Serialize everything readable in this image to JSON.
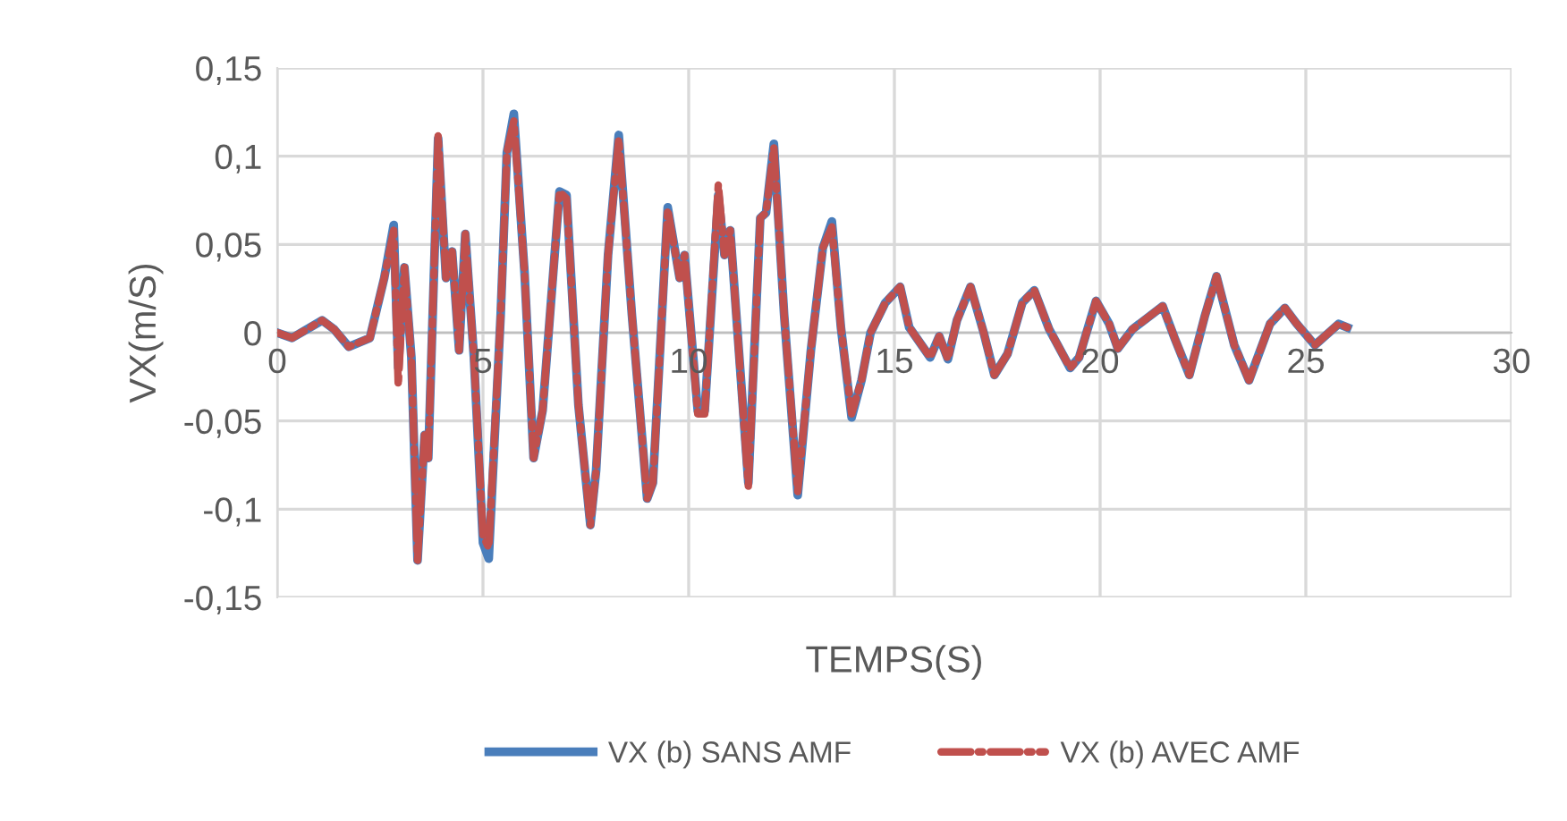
{
  "chart_data": {
    "type": "line",
    "xlabel": "TEMPS(S)",
    "ylabel": "VX(m/S)",
    "xlim": [
      0,
      30
    ],
    "xticks": [
      0,
      5,
      10,
      15,
      20,
      25,
      30
    ],
    "ylim": [
      -0.15,
      0.15
    ],
    "yticks": [
      {
        "value": -0.15,
        "label": "-0,15"
      },
      {
        "value": -0.1,
        "label": "-0,1"
      },
      {
        "value": -0.05,
        "label": "-0,05"
      },
      {
        "value": 0,
        "label": "0"
      },
      {
        "value": 0.05,
        "label": "0,05"
      },
      {
        "value": 0.1,
        "label": "0,1"
      },
      {
        "value": 0.15,
        "label": "0,15"
      }
    ],
    "grid": true,
    "legend": "bottom",
    "marker": "none",
    "x": [
      0,
      0.36,
      1.09,
      1.38,
      1.74,
      2.25,
      2.6,
      2.83,
      2.94,
      3.09,
      3.26,
      3.41,
      3.58,
      3.67,
      3.91,
      4.1,
      4.25,
      4.42,
      4.57,
      4.78,
      5.0,
      5.14,
      5.43,
      5.58,
      5.75,
      6.01,
      6.23,
      6.45,
      6.86,
      7.03,
      7.32,
      7.61,
      7.75,
      8.04,
      8.3,
      8.62,
      8.99,
      9.13,
      9.49,
      9.78,
      9.9,
      10.22,
      10.39,
      10.72,
      10.87,
      11.01,
      11.45,
      11.74,
      11.88,
      12.07,
      12.32,
      12.65,
      12.97,
      13.26,
      13.48,
      13.7,
      13.96,
      14.2,
      14.42,
      14.78,
      15.14,
      15.36,
      15.87,
      16.09,
      16.3,
      16.52,
      16.85,
      17.17,
      17.43,
      17.75,
      18.11,
      18.4,
      18.76,
      19.27,
      19.49,
      19.9,
      20.22,
      20.43,
      20.79,
      21.52,
      21.81,
      22.17,
      22.54,
      22.83,
      23.26,
      23.62,
      24.13,
      24.49,
      24.78,
      25.22,
      25.8,
      26.01
    ],
    "series": [
      {
        "name": "VX (b) SANS AMF",
        "color": "#4a7ebb",
        "line_style": "solid",
        "values": [
          0,
          -0.003,
          0.007,
          0.002,
          -0.008,
          -0.003,
          0.031,
          0.061,
          -0.02,
          0.037,
          -0.014,
          -0.129,
          -0.058,
          -0.071,
          0.11,
          0.031,
          0.046,
          -0.01,
          0.056,
          -0.014,
          -0.119,
          -0.128,
          0.01,
          0.102,
          0.124,
          0.034,
          -0.071,
          -0.044,
          0.08,
          0.078,
          -0.041,
          -0.109,
          -0.078,
          0.044,
          0.112,
          0.01,
          -0.094,
          -0.085,
          0.071,
          0.031,
          0.044,
          -0.044,
          -0.044,
          0.078,
          0.044,
          0.058,
          -0.085,
          0.065,
          0.068,
          0.107,
          0.01,
          -0.092,
          -0.01,
          0.048,
          0.063,
          0.003,
          -0.048,
          -0.027,
          0,
          0.017,
          0.026,
          0.003,
          -0.014,
          -0.002,
          -0.015,
          0.007,
          0.026,
          0,
          -0.024,
          -0.012,
          0.017,
          0.024,
          0.002,
          -0.02,
          -0.014,
          0.018,
          0.005,
          -0.009,
          0.002,
          0.015,
          -0.003,
          -0.024,
          0.009,
          0.032,
          -0.007,
          -0.027,
          0.005,
          0.014,
          0.005,
          -0.007,
          0.005,
          0.003
        ]
      },
      {
        "name": "VX (b) AVEC AMF",
        "color": "#c0504d",
        "line_style": "dashdot",
        "values": [
          0,
          -0.003,
          0.007,
          0.002,
          -0.008,
          -0.003,
          0.031,
          0.058,
          -0.03,
          0.037,
          -0.014,
          -0.129,
          -0.058,
          -0.071,
          0.112,
          0.031,
          0.046,
          -0.01,
          0.056,
          -0.014,
          -0.115,
          -0.122,
          0.01,
          0.102,
          0.12,
          0.034,
          -0.071,
          -0.044,
          0.08,
          0.076,
          -0.041,
          -0.109,
          -0.078,
          0.044,
          0.11,
          0.01,
          -0.094,
          -0.085,
          0.07,
          0.031,
          0.044,
          -0.046,
          -0.046,
          0.084,
          0.044,
          0.058,
          -0.087,
          0.065,
          0.068,
          0.105,
          0.01,
          -0.09,
          -0.01,
          0.048,
          0.06,
          0.003,
          -0.046,
          -0.027,
          0,
          0.017,
          0.026,
          0.003,
          -0.014,
          -0.002,
          -0.015,
          0.007,
          0.026,
          0,
          -0.024,
          -0.012,
          0.017,
          0.024,
          0.002,
          -0.02,
          -0.014,
          0.018,
          0.005,
          -0.009,
          0.002,
          0.015,
          -0.003,
          -0.024,
          0.009,
          0.032,
          -0.007,
          -0.027,
          0.005,
          0.014,
          0.005,
          -0.007,
          0.005,
          0.003
        ]
      }
    ]
  }
}
